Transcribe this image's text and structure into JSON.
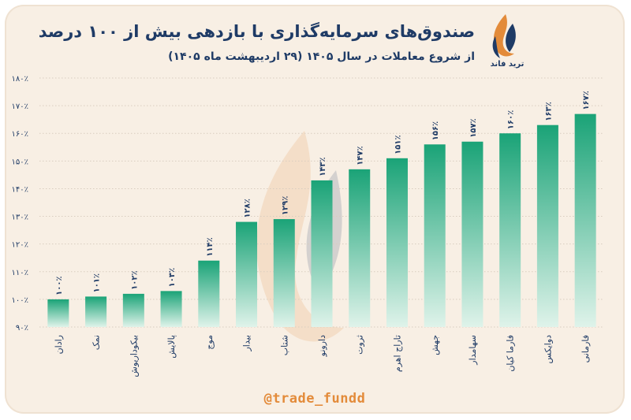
{
  "header": {
    "title": "صندوق‌های سرمایه‌گذاری با بازدهی بیش از ۱۰۰ درصد",
    "subtitle": "از شروع معاملات در سال ۱۴۰۵ (۲۹ اردیبهشت ماه ۱۴۰۵)",
    "logo_text": "ترید فاند"
  },
  "footer": {
    "handle": "@trade_fundd"
  },
  "colors": {
    "bar_top": "#1aa377",
    "bar_bottom": "#dff3ea",
    "grid": "#d9cdbf",
    "text": "#1f3b66",
    "accent": "#e38b3a",
    "background": "#f8efe4"
  },
  "icons": {
    "logo": "flame-logo-icon"
  },
  "chart_data": {
    "type": "bar",
    "categories": [
      "رادان",
      "نمک",
      "بیکوداریوش",
      "پالایش",
      "موج",
      "بیدار",
      "شتاب",
      "دارونو",
      "ثروت",
      "تاراج اهرم",
      "جهش",
      "سهامدار",
      "فارما کیان",
      "دوایکس",
      "فارمانی"
    ],
    "values": [
      100,
      101,
      102,
      103,
      114,
      128,
      129,
      143,
      147,
      151,
      156,
      157,
      160,
      163,
      167
    ],
    "value_labels": [
      "۱۰۰٪",
      "۱۰۱٪",
      "۱۰۲٪",
      "۱۰۳٪",
      "۱۱۴٪",
      "۱۲۸٪",
      "۱۲۹٪",
      "۱۴۳٪",
      "۱۴۷٪",
      "۱۵۱٪",
      "۱۵۶٪",
      "۱۵۷٪",
      "۱۶۰٪",
      "۱۶۳٪",
      "۱۶۷٪"
    ],
    "yticks": [
      {
        "value": 90,
        "label": "۹۰٪"
      },
      {
        "value": 100,
        "label": "۱۰۰٪"
      },
      {
        "value": 110,
        "label": "۱۱۰٪"
      },
      {
        "value": 120,
        "label": "۱۲۰٪"
      },
      {
        "value": 130,
        "label": "۱۳۰٪"
      },
      {
        "value": 140,
        "label": "۱۴۰٪"
      },
      {
        "value": 150,
        "label": "۱۵۰٪"
      },
      {
        "value": 160,
        "label": "۱۶۰٪"
      },
      {
        "value": 170,
        "label": "۱۷۰٪"
      },
      {
        "value": 180,
        "label": "۱۸۰٪"
      }
    ],
    "ylim": [
      90,
      180
    ],
    "grid": true,
    "title": "صندوق‌های سرمایه‌گذاری با بازدهی بیش از ۱۰۰ درصد",
    "xlabel": "",
    "ylabel": ""
  }
}
